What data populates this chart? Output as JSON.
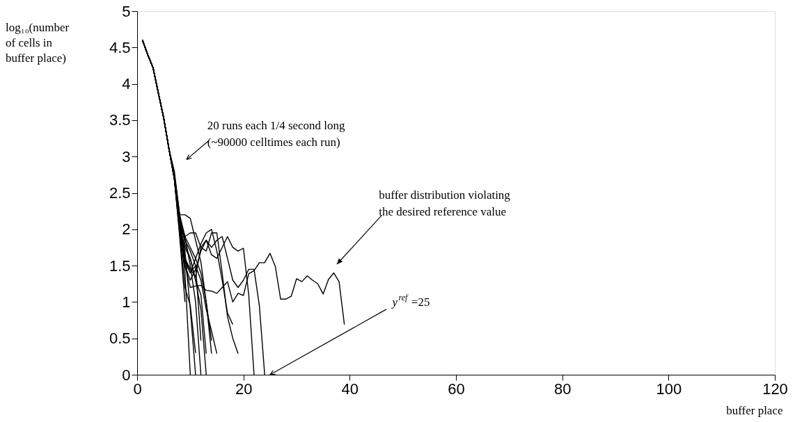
{
  "chart_data": {
    "type": "line",
    "xlabel": "buffer place",
    "ylabel": "log₁₀(number of cells in buffer place)",
    "xlim": [
      0,
      120
    ],
    "ylim": [
      0,
      5
    ],
    "xticks": [
      0,
      20,
      40,
      60,
      80,
      100,
      120
    ],
    "yticks": [
      0,
      0.5,
      1,
      1.5,
      2,
      2.5,
      3,
      3.5,
      4,
      4.5,
      5
    ],
    "grid": false,
    "annotations": [
      "20 runs each 1/4 second long (~90000 celltimes each run)",
      "buffer distribution violating the desired reference value",
      "y$^{ref}$ =25"
    ],
    "series": [
      {
        "color": "#000000",
        "x": [
          1,
          2,
          3,
          4,
          5,
          6,
          7,
          8,
          9
        ],
        "values": [
          4.6,
          4.4,
          4.22,
          3.87,
          3.53,
          3.1,
          2.7,
          1.9,
          1.0
        ]
      },
      {
        "color": "#000000",
        "x": [
          1,
          2,
          3,
          4,
          5,
          6,
          7,
          8,
          9,
          10
        ],
        "values": [
          4.6,
          4.4,
          4.22,
          3.87,
          3.53,
          3.1,
          2.7,
          2.0,
          1.4,
          0
        ]
      },
      {
        "color": "#000000",
        "x": [
          1,
          2,
          3,
          4,
          5,
          6,
          7,
          8,
          9,
          10,
          11
        ],
        "values": [
          4.6,
          4.4,
          4.22,
          3.87,
          3.53,
          3.1,
          2.72,
          2.1,
          1.7,
          0.9,
          0
        ]
      },
      {
        "color": "#000000",
        "x": [
          1,
          2,
          3,
          4,
          5,
          6,
          7,
          8,
          9,
          10,
          11,
          12
        ],
        "values": [
          4.6,
          4.4,
          4.22,
          3.87,
          3.53,
          3.1,
          2.75,
          2.2,
          1.9,
          1.5,
          1.0,
          0
        ]
      },
      {
        "color": "#000000",
        "x": [
          1,
          2,
          3,
          4,
          5,
          6,
          7,
          8,
          9,
          10,
          11,
          12,
          13
        ],
        "values": [
          4.6,
          4.4,
          4.22,
          3.87,
          3.53,
          3.1,
          2.75,
          2.2,
          1.8,
          1.6,
          1.3,
          0.9,
          0
        ]
      },
      {
        "color": "#000000",
        "x": [
          1,
          2,
          3,
          4,
          5,
          6,
          7,
          8,
          9,
          10,
          11,
          12
        ],
        "values": [
          4.6,
          4.4,
          4.22,
          3.87,
          3.53,
          3.1,
          2.7,
          2.15,
          1.6,
          1.4,
          1.5,
          0.47
        ]
      },
      {
        "color": "#000000",
        "x": [
          1,
          2,
          3,
          4,
          5,
          6,
          7,
          8,
          9,
          10,
          11,
          12,
          13
        ],
        "values": [
          4.6,
          4.4,
          4.22,
          3.87,
          3.53,
          3.1,
          2.7,
          2.05,
          1.75,
          1.6,
          1.3,
          1.1,
          0.29
        ]
      },
      {
        "color": "#000000",
        "x": [
          1,
          2,
          3,
          4,
          5,
          6,
          7,
          8,
          9,
          10,
          11,
          12,
          13,
          14
        ],
        "values": [
          4.6,
          4.4,
          4.22,
          3.87,
          3.53,
          3.1,
          2.8,
          2.2,
          2.2,
          2.15,
          1.85,
          1.55,
          1.0,
          0.29
        ]
      },
      {
        "color": "#000000",
        "x": [
          1,
          2,
          3,
          4,
          5,
          6,
          7,
          8,
          9,
          10,
          11,
          12,
          13,
          14
        ],
        "values": [
          4.6,
          4.4,
          4.22,
          3.87,
          3.53,
          3.1,
          2.72,
          2.0,
          1.9,
          1.75,
          1.6,
          1.4,
          1.0,
          0.47
        ]
      },
      {
        "color": "#000000",
        "x": [
          1,
          2,
          3,
          4,
          5,
          6,
          7,
          8,
          9,
          10,
          11,
          12,
          13,
          14,
          15,
          16,
          17,
          18
        ],
        "values": [
          4.6,
          4.4,
          4.22,
          3.87,
          3.53,
          3.1,
          2.7,
          2.1,
          1.55,
          1.4,
          1.6,
          1.8,
          1.95,
          2.0,
          1.7,
          1.3,
          0.85,
          0.69
        ]
      },
      {
        "color": "#000000",
        "x": [
          1,
          2,
          3,
          4,
          5,
          6,
          7,
          8,
          9,
          10,
          11,
          12,
          13,
          14,
          15,
          16,
          17,
          18,
          19
        ],
        "values": [
          4.6,
          4.4,
          4.22,
          3.87,
          3.53,
          3.1,
          2.75,
          2.15,
          1.9,
          1.95,
          1.95,
          1.75,
          1.7,
          1.95,
          1.95,
          1.4,
          0.8,
          0.5,
          0.29
        ]
      },
      {
        "color": "#000000",
        "x": [
          1,
          2,
          3,
          4,
          5,
          6,
          7,
          8,
          9,
          10,
          11,
          12,
          13,
          14,
          15,
          16,
          17,
          18,
          19,
          20,
          21,
          22
        ],
        "values": [
          4.6,
          4.4,
          4.22,
          3.87,
          3.53,
          3.1,
          2.7,
          2.0,
          1.6,
          1.45,
          1.35,
          1.75,
          1.85,
          1.65,
          1.6,
          1.75,
          1.9,
          1.75,
          1.7,
          1.74,
          1.1,
          0
        ]
      },
      {
        "color": "#000000",
        "x": [
          1,
          2,
          3,
          4,
          5,
          6,
          7,
          8,
          9,
          10,
          11,
          12,
          13,
          14,
          15,
          16,
          17,
          18,
          19,
          20,
          21,
          22,
          23,
          24,
          25,
          26,
          27,
          28,
          29,
          30,
          31,
          32,
          33,
          34,
          35,
          36,
          37,
          38,
          39
        ],
        "values": [
          4.6,
          4.4,
          4.22,
          3.87,
          3.53,
          3.1,
          2.7,
          2.0,
          1.5,
          1.2,
          1.22,
          1.23,
          1.16,
          1.15,
          1.12,
          1.2,
          1.28,
          1.0,
          1.12,
          1.09,
          1.39,
          1.43,
          1.54,
          1.54,
          1.67,
          1.49,
          1.04,
          1.04,
          1.08,
          1.32,
          1.28,
          1.36,
          1.3,
          1.25,
          1.11,
          1.31,
          1.4,
          1.28,
          0.69
        ]
      },
      {
        "color": "#000000",
        "x": [
          1,
          2,
          3,
          4,
          5,
          6,
          7,
          8,
          9,
          10,
          11,
          12,
          13,
          14,
          15,
          16,
          17,
          18,
          19,
          20,
          21,
          22,
          23,
          24
        ],
        "values": [
          4.6,
          4.4,
          4.22,
          3.87,
          3.53,
          3.1,
          2.7,
          2.1,
          1.5,
          1.3,
          1.45,
          1.7,
          1.85,
          1.75,
          1.85,
          1.9,
          1.6,
          1.3,
          1.2,
          1.3,
          1.45,
          1.45,
          0.95,
          0
        ]
      },
      {
        "color": "#000000",
        "x": [
          1,
          2,
          3,
          4,
          5,
          6,
          7,
          8,
          9,
          10,
          11,
          12,
          13,
          14,
          15
        ],
        "values": [
          4.6,
          4.4,
          4.22,
          3.87,
          3.53,
          3.1,
          2.7,
          2.1,
          1.85,
          1.7,
          1.5,
          1.3,
          0.9,
          0.6,
          0.29
        ]
      },
      {
        "color": "#000000",
        "x": [
          1,
          2,
          3,
          4,
          5,
          6,
          7,
          8,
          9,
          10,
          11
        ],
        "values": [
          4.6,
          4.4,
          4.22,
          3.87,
          3.53,
          3.1,
          2.68,
          1.95,
          1.2,
          0.95,
          0.3
        ]
      }
    ]
  }
}
